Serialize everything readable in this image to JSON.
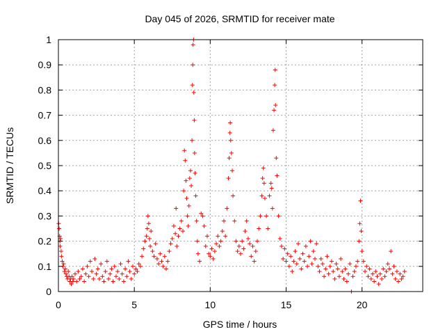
{
  "chart_data": {
    "type": "scatter",
    "title": "Day 045 of 2026, SRMTID for receiver mate",
    "xlabel": "GPS time / hours",
    "ylabel": "SRMTID / TECUs",
    "xlim": [
      0,
      24
    ],
    "ylim": [
      0,
      1
    ],
    "xticks": [
      0,
      5,
      10,
      15,
      20
    ],
    "xtick_labels": [
      "0",
      "5",
      "10",
      "15",
      "20"
    ],
    "yticks": [
      0,
      0.1,
      0.2,
      0.3,
      0.4,
      0.5,
      0.6,
      0.7,
      0.8,
      0.9,
      1
    ],
    "ytick_labels": [
      "0",
      "0.1",
      "0.2",
      "0.3",
      "0.4",
      "0.5",
      "0.6",
      "0.7",
      "0.8",
      "0.9",
      "1"
    ],
    "grid": true,
    "marker": "+",
    "color": "#ff0000",
    "series": [
      {
        "name": "SRMTID",
        "points": [
          [
            0.02,
            0.27
          ],
          [
            0.05,
            0.25
          ],
          [
            0.08,
            0.22
          ],
          [
            0.1,
            0.2
          ],
          [
            0.12,
            0.18
          ],
          [
            0.15,
            0.21
          ],
          [
            0.18,
            0.16
          ],
          [
            0.2,
            0.14
          ],
          [
            0.25,
            0.12
          ],
          [
            0.3,
            0.1
          ],
          [
            0.35,
            0.11
          ],
          [
            0.4,
            0.08
          ],
          [
            0.45,
            0.09
          ],
          [
            0.5,
            0.07
          ],
          [
            0.55,
            0.06
          ],
          [
            0.6,
            0.05
          ],
          [
            0.65,
            0.08
          ],
          [
            0.7,
            0.06
          ],
          [
            0.75,
            0.04
          ],
          [
            0.8,
            0.05
          ],
          [
            0.85,
            0.03
          ],
          [
            0.9,
            0.06
          ],
          [
            0.95,
            0.04
          ],
          [
            1.0,
            0.05
          ],
          [
            1.1,
            0.07
          ],
          [
            1.2,
            0.04
          ],
          [
            1.3,
            0.08
          ],
          [
            1.4,
            0.05
          ],
          [
            1.5,
            0.06
          ],
          [
            1.6,
            0.09
          ],
          [
            1.7,
            0.04
          ],
          [
            1.8,
            0.07
          ],
          [
            1.9,
            0.1
          ],
          [
            2.0,
            0.06
          ],
          [
            2.1,
            0.12
          ],
          [
            2.2,
            0.08
          ],
          [
            2.3,
            0.05
          ],
          [
            2.4,
            0.13
          ],
          [
            2.5,
            0.07
          ],
          [
            2.6,
            0.09
          ],
          [
            2.7,
            0.05
          ],
          [
            2.8,
            0.11
          ],
          [
            2.9,
            0.06
          ],
          [
            3.0,
            0.04
          ],
          [
            3.1,
            0.08
          ],
          [
            3.2,
            0.12
          ],
          [
            3.3,
            0.05
          ],
          [
            3.4,
            0.07
          ],
          [
            3.5,
            0.09
          ],
          [
            3.6,
            0.04
          ],
          [
            3.7,
            0.1
          ],
          [
            3.8,
            0.06
          ],
          [
            3.9,
            0.08
          ],
          [
            4.0,
            0.05
          ],
          [
            4.1,
            0.11
          ],
          [
            4.2,
            0.07
          ],
          [
            4.3,
            0.04
          ],
          [
            4.4,
            0.09
          ],
          [
            4.5,
            0.06
          ],
          [
            4.6,
            0.12
          ],
          [
            4.7,
            0.08
          ],
          [
            4.8,
            0.05
          ],
          [
            4.9,
            0.1
          ],
          [
            5.0,
            0.07
          ],
          [
            5.1,
            0.09
          ],
          [
            5.2,
            0.08
          ],
          [
            5.3,
            0.11
          ],
          [
            5.4,
            0.1
          ],
          [
            5.5,
            0.14
          ],
          [
            5.6,
            0.17
          ],
          [
            5.7,
            0.2
          ],
          [
            5.8,
            0.22
          ],
          [
            5.85,
            0.25
          ],
          [
            5.9,
            0.3
          ],
          [
            5.95,
            0.27
          ],
          [
            6.0,
            0.21
          ],
          [
            6.05,
            0.18
          ],
          [
            6.1,
            0.24
          ],
          [
            6.2,
            0.16
          ],
          [
            6.3,
            0.14
          ],
          [
            6.4,
            0.19
          ],
          [
            6.5,
            0.13
          ],
          [
            6.6,
            0.11
          ],
          [
            6.7,
            0.15
          ],
          [
            6.8,
            0.12
          ],
          [
            6.9,
            0.1
          ],
          [
            7.0,
            0.14
          ],
          [
            7.1,
            0.09
          ],
          [
            7.2,
            0.12
          ],
          [
            7.3,
            0.16
          ],
          [
            7.4,
            0.19
          ],
          [
            7.5,
            0.21
          ],
          [
            7.6,
            0.26
          ],
          [
            7.7,
            0.23
          ],
          [
            7.75,
            0.33
          ],
          [
            7.8,
            0.18
          ],
          [
            7.9,
            0.22
          ],
          [
            8.0,
            0.25
          ],
          [
            8.1,
            0.28
          ],
          [
            8.2,
            0.24
          ],
          [
            8.25,
            0.4
          ],
          [
            8.3,
            0.56
          ],
          [
            8.35,
            0.52
          ],
          [
            8.4,
            0.44
          ],
          [
            8.45,
            0.37
          ],
          [
            8.5,
            0.3
          ],
          [
            8.55,
            0.26
          ],
          [
            8.6,
            0.34
          ],
          [
            8.65,
            0.45
          ],
          [
            8.7,
            0.48
          ],
          [
            8.75,
            0.42
          ],
          [
            8.8,
            0.6
          ],
          [
            8.83,
            0.82
          ],
          [
            8.85,
            0.9
          ],
          [
            8.87,
            0.98
          ],
          [
            8.9,
            1.0
          ],
          [
            8.92,
            0.79
          ],
          [
            8.95,
            0.68
          ],
          [
            8.97,
            0.55
          ],
          [
            9.0,
            0.47
          ],
          [
            9.05,
            0.38
          ],
          [
            9.1,
            0.28
          ],
          [
            9.15,
            0.2
          ],
          [
            9.2,
            0.15
          ],
          [
            9.3,
            0.12
          ],
          [
            9.4,
            0.31
          ],
          [
            9.5,
            0.3
          ],
          [
            9.6,
            0.26
          ],
          [
            9.7,
            0.18
          ],
          [
            9.8,
            0.22
          ],
          [
            9.9,
            0.15
          ],
          [
            10.0,
            0.14
          ],
          [
            10.1,
            0.17
          ],
          [
            10.2,
            0.13
          ],
          [
            10.3,
            0.16
          ],
          [
            10.4,
            0.19
          ],
          [
            10.5,
            0.22
          ],
          [
            10.6,
            0.18
          ],
          [
            10.7,
            0.2
          ],
          [
            10.8,
            0.24
          ],
          [
            10.9,
            0.28
          ],
          [
            11.0,
            0.22
          ],
          [
            11.1,
            0.33
          ],
          [
            11.2,
            0.45
          ],
          [
            11.25,
            0.53
          ],
          [
            11.3,
            0.63
          ],
          [
            11.32,
            0.67
          ],
          [
            11.35,
            0.6
          ],
          [
            11.4,
            0.55
          ],
          [
            11.45,
            0.48
          ],
          [
            11.5,
            0.38
          ],
          [
            11.6,
            0.28
          ],
          [
            11.7,
            0.2
          ],
          [
            11.8,
            0.16
          ],
          [
            11.9,
            0.18
          ],
          [
            12.0,
            0.15
          ],
          [
            12.1,
            0.2
          ],
          [
            12.2,
            0.17
          ],
          [
            12.3,
            0.24
          ],
          [
            12.4,
            0.28
          ],
          [
            12.5,
            0.21
          ],
          [
            12.6,
            0.19
          ],
          [
            12.7,
            0.14
          ],
          [
            12.8,
            0.18
          ],
          [
            12.9,
            0.12
          ],
          [
            13.0,
            0.16
          ],
          [
            13.1,
            0.2
          ],
          [
            13.2,
            0.25
          ],
          [
            13.3,
            0.3
          ],
          [
            13.4,
            0.38
          ],
          [
            13.45,
            0.45
          ],
          [
            13.5,
            0.49
          ],
          [
            13.55,
            0.43
          ],
          [
            13.6,
            0.37
          ],
          [
            13.7,
            0.3
          ],
          [
            13.8,
            0.25
          ],
          [
            13.9,
            0.38
          ],
          [
            14.0,
            0.43
          ],
          [
            14.05,
            0.41
          ],
          [
            14.1,
            0.33
          ],
          [
            14.15,
            0.64
          ],
          [
            14.2,
            0.72
          ],
          [
            14.25,
            0.82
          ],
          [
            14.28,
            0.88
          ],
          [
            14.3,
            0.74
          ],
          [
            14.35,
            0.53
          ],
          [
            14.4,
            0.46
          ],
          [
            14.5,
            0.3
          ],
          [
            14.6,
            0.21
          ],
          [
            14.7,
            0.18
          ],
          [
            14.8,
            0.13
          ],
          [
            14.9,
            0.17
          ],
          [
            15.0,
            0.12
          ],
          [
            15.1,
            0.15
          ],
          [
            15.2,
            0.1
          ],
          [
            15.3,
            0.14
          ],
          [
            15.4,
            0.08
          ],
          [
            15.5,
            0.12
          ],
          [
            15.6,
            0.16
          ],
          [
            15.7,
            0.11
          ],
          [
            15.8,
            0.19
          ],
          [
            15.9,
            0.13
          ],
          [
            16.0,
            0.09
          ],
          [
            16.1,
            0.15
          ],
          [
            16.2,
            0.12
          ],
          [
            16.3,
            0.18
          ],
          [
            16.4,
            0.1
          ],
          [
            16.5,
            0.14
          ],
          [
            16.6,
            0.2
          ],
          [
            16.7,
            0.11
          ],
          [
            16.8,
            0.16
          ],
          [
            16.9,
            0.13
          ],
          [
            17.0,
            0.19
          ],
          [
            17.1,
            0.1
          ],
          [
            17.2,
            0.08
          ],
          [
            17.3,
            0.13
          ],
          [
            17.4,
            0.11
          ],
          [
            17.5,
            0.06
          ],
          [
            17.6,
            0.09
          ],
          [
            17.7,
            0.14
          ],
          [
            17.8,
            0.07
          ],
          [
            17.9,
            0.1
          ],
          [
            18.0,
            0.12
          ],
          [
            18.1,
            0.08
          ],
          [
            18.2,
            0.05
          ],
          [
            18.3,
            0.11
          ],
          [
            18.4,
            0.09
          ],
          [
            18.5,
            0.06
          ],
          [
            18.6,
            0.13
          ],
          [
            18.7,
            0.08
          ],
          [
            18.8,
            0.05
          ],
          [
            18.9,
            0.09
          ],
          [
            19.0,
            0.04
          ],
          [
            19.1,
            0.07
          ],
          [
            19.2,
            0.11
          ],
          [
            19.3,
            0.0
          ],
          [
            19.4,
            0.06
          ],
          [
            19.5,
            0.08
          ],
          [
            19.6,
            0.1
          ],
          [
            19.7,
            0.12
          ],
          [
            19.8,
            0.2
          ],
          [
            19.85,
            0.27
          ],
          [
            19.9,
            0.36
          ],
          [
            19.95,
            0.24
          ],
          [
            20.0,
            0.16
          ],
          [
            20.1,
            0.12
          ],
          [
            20.2,
            0.08
          ],
          [
            20.3,
            0.1
          ],
          [
            20.4,
            0.06
          ],
          [
            20.5,
            0.09
          ],
          [
            20.6,
            0.05
          ],
          [
            20.7,
            0.07
          ],
          [
            20.8,
            0.04
          ],
          [
            20.9,
            0.08
          ],
          [
            21.0,
            0.06
          ],
          [
            21.1,
            0.03
          ],
          [
            21.2,
            0.07
          ],
          [
            21.3,
            0.05
          ],
          [
            21.4,
            0.09
          ],
          [
            21.5,
            0.06
          ],
          [
            21.6,
            0.08
          ],
          [
            21.7,
            0.11
          ],
          [
            21.8,
            0.09
          ],
          [
            21.9,
            0.16
          ],
          [
            22.0,
            0.07
          ],
          [
            22.1,
            0.1
          ],
          [
            22.2,
            0.05
          ],
          [
            22.3,
            0.08
          ],
          [
            22.4,
            0.04
          ],
          [
            22.5,
            0.07
          ],
          [
            22.6,
            0.05
          ],
          [
            22.7,
            0.06
          ],
          [
            22.8,
            0.08
          ]
        ]
      }
    ]
  }
}
